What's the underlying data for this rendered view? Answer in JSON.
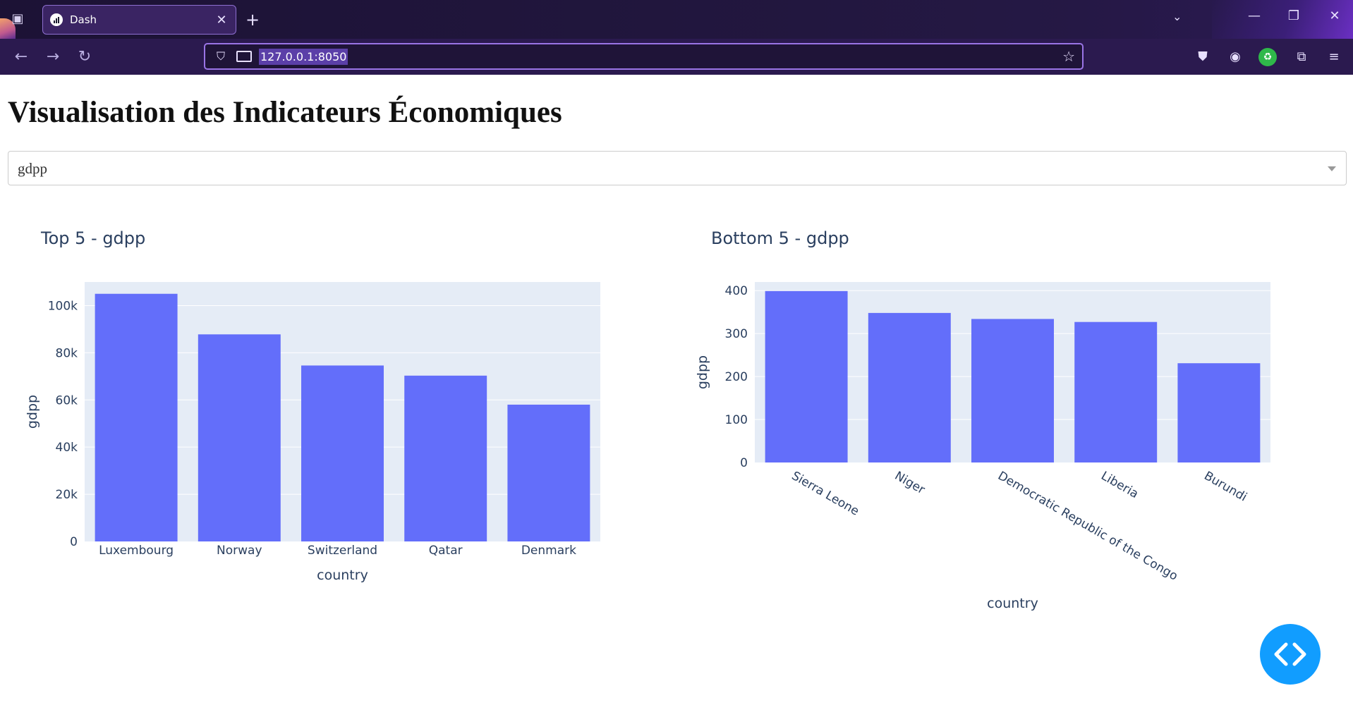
{
  "browser": {
    "tab_title": "Dash",
    "url": "127.0.0.1:8050"
  },
  "page": {
    "title": "Visualisation des Indicateurs Économiques",
    "dropdown_value": "gdpp"
  },
  "colors": {
    "bar": "#636efa",
    "plot_bg": "#e5ecf6",
    "fab": "#119dff"
  },
  "chart_data": [
    {
      "type": "bar",
      "title": "Top 5 - gdpp",
      "xlabel": "country",
      "ylabel": "gdpp",
      "categories": [
        "Luxembourg",
        "Norway",
        "Switzerland",
        "Qatar",
        "Denmark"
      ],
      "values": [
        105000,
        87800,
        74600,
        70300,
        58000
      ],
      "ylim": [
        0,
        110000
      ],
      "yticks": [
        0,
        20000,
        40000,
        60000,
        80000,
        100000
      ],
      "ytick_labels": [
        "0",
        "20k",
        "40k",
        "60k",
        "80k",
        "100k"
      ],
      "grid": true
    },
    {
      "type": "bar",
      "title": "Bottom 5 - gdpp",
      "xlabel": "country",
      "ylabel": "gdpp",
      "categories": [
        "Sierra Leone",
        "Niger",
        "Democratic Republic of the Congo",
        "Liberia",
        "Burundi"
      ],
      "values": [
        399,
        348,
        334,
        327,
        231
      ],
      "ylim": [
        0,
        420
      ],
      "yticks": [
        0,
        100,
        200,
        300,
        400
      ],
      "ytick_labels": [
        "0",
        "100",
        "200",
        "300",
        "400"
      ],
      "grid": true
    }
  ]
}
